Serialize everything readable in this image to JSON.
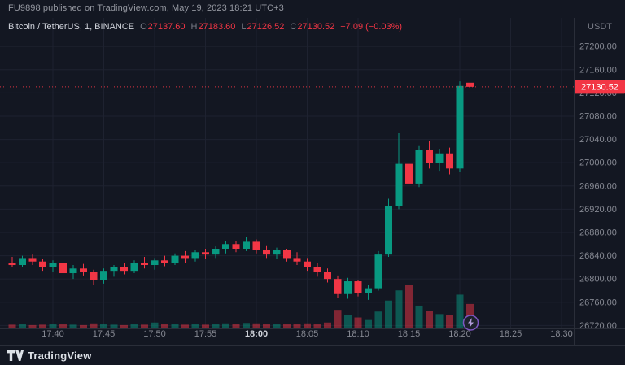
{
  "header": {
    "text": "FU9898 published on TradingView.com, May 19, 2023 18:21 UTC+3"
  },
  "legend": {
    "title": "Bitcoin / TetherUS, 1, BINANCE",
    "ohlc": {
      "o_label": "O",
      "o": "27137.60",
      "h_label": "H",
      "h": "27183.60",
      "l_label": "L",
      "l": "27126.52",
      "c_label": "C",
      "c": "27130.52",
      "change": "−7.09 (−0.03%)"
    }
  },
  "price_scale": {
    "currency_label": "USDT",
    "last_price_badge": "27130.52"
  },
  "footer": {
    "brand": "TradingView"
  },
  "colors": {
    "up": "#089981",
    "down": "#f23645",
    "background": "#131722",
    "grid": "#1e2230",
    "axis_text": "#868993",
    "axis_text_bright": "#d1d4dc",
    "last_price_line": "#f23645",
    "marker_purple": "#7e57c2"
  },
  "chart_data": {
    "type": "candlestick",
    "title": "Bitcoin / TetherUS, 1, BINANCE",
    "symbol": "Bitcoin / TetherUS",
    "interval": "1",
    "exchange": "BINANCE",
    "price_axis": {
      "unit": "USDT",
      "ticks": [
        27200,
        27160,
        27120,
        27080,
        27040,
        27000,
        26960,
        26920,
        26880,
        26840,
        26800,
        26760,
        26720
      ],
      "visible_range": [
        26690,
        27245
      ]
    },
    "time_axis": {
      "ticks": [
        "17:40",
        "17:45",
        "17:50",
        "17:55",
        "18:00",
        "18:05",
        "18:10",
        "18:15",
        "18:20",
        "18:25",
        "18:30"
      ],
      "emphasized": [
        "18:00"
      ],
      "visible_range": [
        "17:36",
        "18:32"
      ]
    },
    "last_price": 27130.52,
    "last_candle_change": "-7.09 (-0.03%)",
    "candles": {
      "columns": [
        "time",
        "open",
        "high",
        "low",
        "close",
        "volume"
      ],
      "rows": [
        [
          "17:36",
          26828,
          26838,
          26820,
          26824,
          7
        ],
        [
          "17:37",
          26824,
          26840,
          26820,
          26836,
          8
        ],
        [
          "17:38",
          26836,
          26842,
          26824,
          26830,
          6
        ],
        [
          "17:39",
          26830,
          26834,
          26814,
          26820,
          7
        ],
        [
          "17:40",
          26820,
          26832,
          26812,
          26828,
          9
        ],
        [
          "17:41",
          26828,
          26830,
          26804,
          26810,
          8
        ],
        [
          "17:42",
          26810,
          26824,
          26800,
          26818,
          7
        ],
        [
          "17:43",
          26818,
          26826,
          26806,
          26812,
          6
        ],
        [
          "17:44",
          26812,
          26816,
          26790,
          26798,
          10
        ],
        [
          "17:45",
          26798,
          26818,
          26792,
          26814,
          9
        ],
        [
          "17:46",
          26814,
          26824,
          26804,
          26820,
          7
        ],
        [
          "17:47",
          26820,
          26828,
          26808,
          26814,
          6
        ],
        [
          "17:48",
          26814,
          26832,
          26810,
          26828,
          8
        ],
        [
          "17:49",
          26828,
          26838,
          26818,
          26824,
          7
        ],
        [
          "17:50",
          26824,
          26836,
          26816,
          26832,
          12
        ],
        [
          "17:51",
          26832,
          26840,
          26822,
          26828,
          8
        ],
        [
          "17:52",
          26828,
          26844,
          26824,
          26840,
          9
        ],
        [
          "17:53",
          26840,
          26848,
          26828,
          26836,
          7
        ],
        [
          "17:54",
          26836,
          26850,
          26830,
          26846,
          8
        ],
        [
          "17:55",
          26846,
          26852,
          26834,
          26842,
          7
        ],
        [
          "17:56",
          26842,
          26856,
          26836,
          26852,
          9
        ],
        [
          "17:57",
          26852,
          26866,
          26844,
          26860,
          10
        ],
        [
          "17:58",
          26860,
          26866,
          26846,
          26852,
          8
        ],
        [
          "17:59",
          26852,
          26872,
          26848,
          26864,
          11
        ],
        [
          "18:00",
          26864,
          26868,
          26844,
          26850,
          10
        ],
        [
          "18:01",
          26850,
          26858,
          26836,
          26842,
          9
        ],
        [
          "18:02",
          26842,
          26854,
          26834,
          26850,
          8
        ],
        [
          "18:03",
          26850,
          26852,
          26830,
          26836,
          9
        ],
        [
          "18:04",
          26836,
          26846,
          26824,
          26830,
          8
        ],
        [
          "18:05",
          26830,
          26836,
          26814,
          26820,
          10
        ],
        [
          "18:06",
          26820,
          26828,
          26804,
          26812,
          9
        ],
        [
          "18:07",
          26812,
          26818,
          26794,
          26800,
          12
        ],
        [
          "18:08",
          26800,
          26806,
          26768,
          26774,
          42
        ],
        [
          "18:09",
          26774,
          26802,
          26766,
          26796,
          30
        ],
        [
          "18:10",
          26796,
          26798,
          26770,
          26776,
          24
        ],
        [
          "18:11",
          26776,
          26790,
          26764,
          26784,
          18
        ],
        [
          "18:12",
          26784,
          26848,
          26780,
          26842,
          38
        ],
        [
          "18:13",
          26842,
          26938,
          26838,
          26926,
          64
        ],
        [
          "18:14",
          26926,
          27052,
          26920,
          26998,
          88
        ],
        [
          "18:15",
          26998,
          27012,
          26950,
          26964,
          100
        ],
        [
          "18:16",
          26964,
          27030,
          26958,
          27022,
          52
        ],
        [
          "18:17",
          27022,
          27038,
          26990,
          27000,
          40
        ],
        [
          "18:18",
          27000,
          27024,
          26986,
          27016,
          32
        ],
        [
          "18:19",
          27016,
          27026,
          26980,
          26990,
          30
        ],
        [
          "18:20",
          26990,
          27140,
          26984,
          27132,
          78
        ],
        [
          "18:21",
          27137.6,
          27183.6,
          27126.52,
          27130.52,
          56
        ]
      ]
    },
    "marker": {
      "type": "publication-flash",
      "time": "18:21",
      "color": "#7e57c2"
    }
  }
}
